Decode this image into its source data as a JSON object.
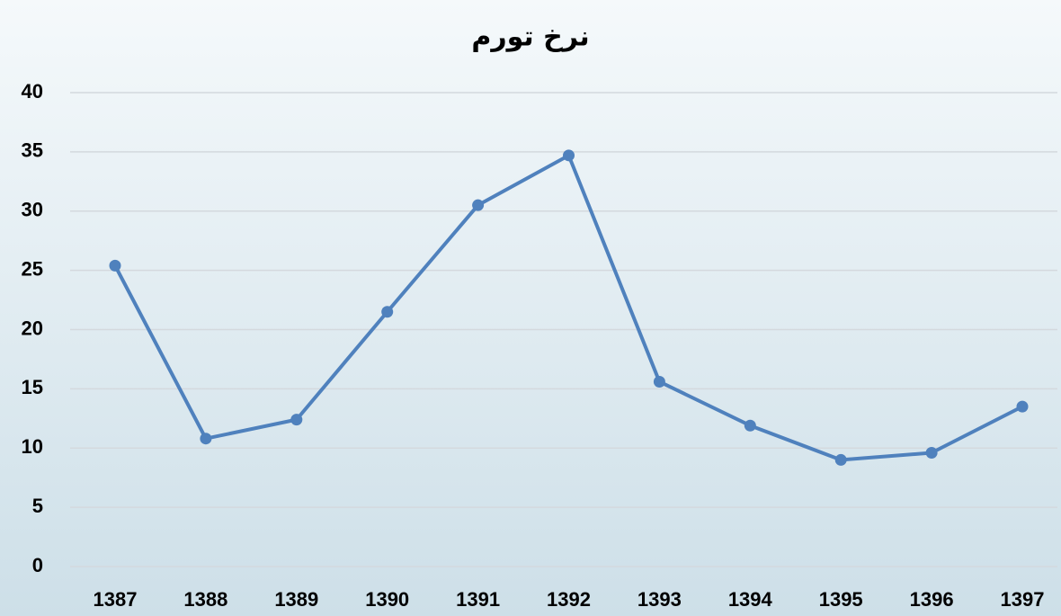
{
  "chart_data": {
    "type": "line",
    "title": "نرخ تورم",
    "categories": [
      "1387",
      "1388",
      "1389",
      "1390",
      "1391",
      "1392",
      "1393",
      "1394",
      "1395",
      "1396",
      "1397"
    ],
    "series": [
      {
        "name": "نرخ تورم",
        "color": "#4f81bd",
        "values": [
          25.4,
          10.8,
          12.4,
          21.5,
          30.5,
          34.7,
          15.6,
          11.9,
          9.0,
          9.6,
          13.5
        ]
      }
    ],
    "ylim": [
      0,
      40
    ],
    "yticks": [
      0,
      5,
      10,
      15,
      20,
      25,
      30,
      35,
      40
    ],
    "grid": true
  }
}
